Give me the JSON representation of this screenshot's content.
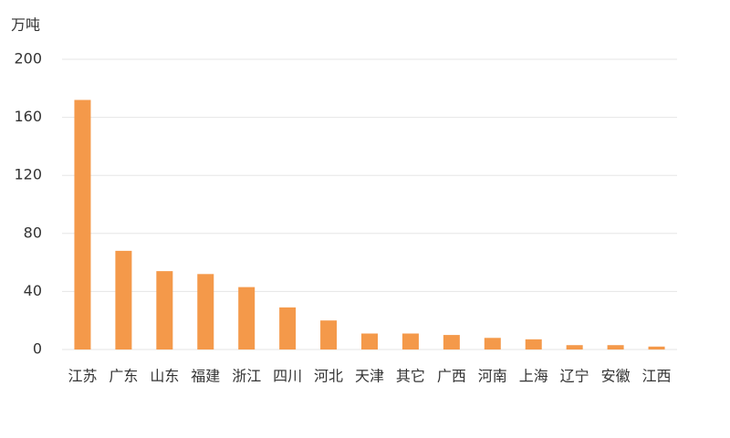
{
  "chart_data": {
    "type": "bar",
    "y_label": "万吨",
    "categories": [
      "江苏",
      "广东",
      "山东",
      "福建",
      "浙江",
      "四川",
      "河北",
      "天津",
      "其它",
      "广西",
      "河南",
      "上海",
      "辽宁",
      "安徽",
      "江西"
    ],
    "values": [
      172,
      68,
      54,
      52,
      43,
      29,
      20,
      11,
      11,
      10,
      8,
      7,
      3,
      3,
      2
    ],
    "color": "#f4994a",
    "ylim": [
      0,
      200
    ],
    "yticks": [
      0,
      40,
      80,
      120,
      160,
      200
    ],
    "grid": true
  }
}
